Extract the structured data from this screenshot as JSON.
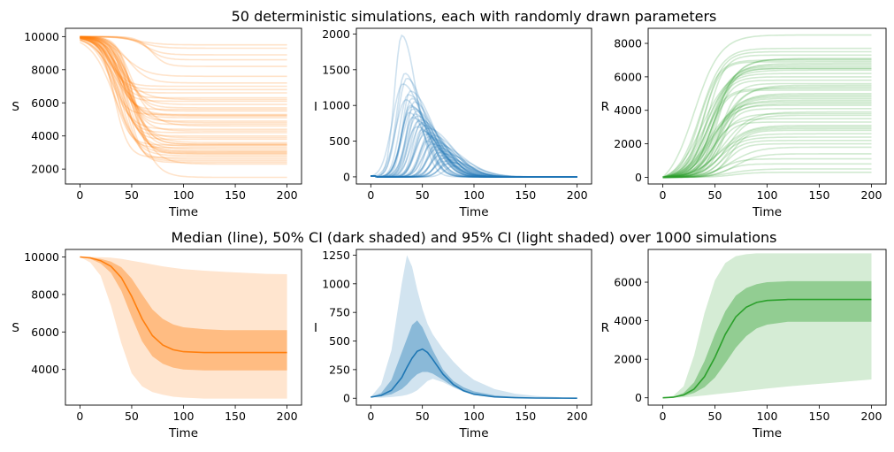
{
  "titles": {
    "top": "50 deterministic simulations, each with randomly drawn parameters",
    "bottom": "Median (line), 50% CI (dark shaded) and 95% CI (light shaded) over 1000 simulations"
  },
  "colors": {
    "S": "#ff7f0e",
    "I": "#1f77b4",
    "R": "#2ca02c"
  },
  "chart_data": [
    {
      "type": "line",
      "panel": "top-S",
      "variable": "S",
      "xlabel": "Time",
      "ylabel": "S",
      "xlim": [
        -14,
        214
      ],
      "ylim": [
        1100,
        10500
      ],
      "xticks": [
        0,
        50,
        100,
        150,
        200
      ],
      "yticks": [
        2000,
        4000,
        6000,
        8000,
        10000
      ],
      "color": "#ff7f0e",
      "trajectories_note_value": 50,
      "final_values": [
        9500,
        9300,
        8900,
        8600,
        8200,
        7600,
        7200,
        7000,
        6600,
        6300,
        6200,
        5900,
        5700,
        5500,
        5300,
        5250,
        5200,
        5100,
        4900,
        4700,
        4600,
        4400,
        4200,
        4000,
        3800,
        3600,
        3500,
        3500,
        3450,
        3300,
        3200,
        3100,
        3050,
        3000,
        2950,
        2900,
        2800,
        2600,
        2500,
        2400,
        2300,
        1500,
        6800,
        6100,
        5600,
        4800,
        4300,
        3900,
        3400,
        2700
      ]
    },
    {
      "type": "line",
      "panel": "top-I",
      "variable": "I",
      "xlabel": "Time",
      "ylabel": "I",
      "xlim": [
        -14,
        214
      ],
      "ylim": [
        -100,
        2080
      ],
      "xticks": [
        0,
        50,
        100,
        150,
        200
      ],
      "yticks": [
        0,
        500,
        1000,
        1500,
        2000
      ],
      "color": "#1f77b4",
      "peaks": [
        1980,
        1450,
        1380,
        1300,
        1200,
        1150,
        1100,
        1080,
        1050,
        1000,
        980,
        950,
        920,
        900,
        880,
        850,
        830,
        800,
        780,
        760,
        740,
        720,
        700,
        680,
        660,
        640,
        620,
        600,
        580,
        560,
        540,
        520,
        500,
        480,
        460,
        440,
        420,
        400,
        380,
        360,
        340,
        320,
        300,
        280,
        260,
        240,
        220,
        200,
        180,
        150
      ],
      "peak_times": [
        30,
        33,
        35,
        31,
        38,
        36,
        40,
        34,
        42,
        38,
        39,
        41,
        44,
        37,
        43,
        45,
        40,
        47,
        46,
        50,
        48,
        52,
        44,
        55,
        49,
        51,
        57,
        53,
        60,
        56,
        58,
        62,
        54,
        64,
        59,
        66,
        61,
        68,
        63,
        70,
        65,
        72,
        67,
        74,
        69,
        76,
        71,
        78,
        73,
        80
      ]
    },
    {
      "type": "line",
      "panel": "top-R",
      "variable": "R",
      "xlabel": "Time",
      "ylabel": "R",
      "xlim": [
        -14,
        214
      ],
      "ylim": [
        -400,
        8900
      ],
      "xticks": [
        0,
        50,
        100,
        150,
        200
      ],
      "yticks": [
        0,
        2000,
        4000,
        6000,
        8000
      ],
      "color": "#2ca02c",
      "final_values": [
        8500,
        7700,
        7500,
        7300,
        7100,
        7050,
        7000,
        6900,
        6800,
        6700,
        6500,
        6500,
        6400,
        6200,
        6000,
        5800,
        5500,
        5400,
        5300,
        5200,
        5000,
        4900,
        4800,
        4700,
        4600,
        4500,
        4300,
        4100,
        3900,
        3700,
        3500,
        3300,
        3100,
        3000,
        2900,
        2800,
        2600,
        2400,
        2200,
        2000,
        1800,
        1400,
        1100,
        800,
        500,
        300,
        6600,
        5600,
        4400,
        3800
      ]
    },
    {
      "type": "area",
      "panel": "bottom-S",
      "variable": "S",
      "xlabel": "Time",
      "ylabel": "S",
      "xlim": [
        -14,
        214
      ],
      "ylim": [
        2100,
        10400
      ],
      "xticks": [
        0,
        50,
        100,
        150,
        200
      ],
      "yticks": [
        4000,
        6000,
        8000,
        10000
      ],
      "x": [
        0,
        10,
        20,
        30,
        40,
        50,
        60,
        70,
        80,
        90,
        100,
        120,
        140,
        160,
        180,
        200
      ],
      "median": [
        10000,
        9950,
        9800,
        9500,
        8900,
        7900,
        6700,
        5800,
        5300,
        5050,
        4950,
        4900,
        4900,
        4900,
        4900,
        4900
      ],
      "ci50_low": [
        10000,
        9900,
        9650,
        9150,
        8200,
        6800,
        5500,
        4700,
        4300,
        4100,
        4000,
        3950,
        3950,
        3950,
        3950,
        3950
      ],
      "ci50_high": [
        10000,
        9980,
        9900,
        9750,
        9450,
        8850,
        8000,
        7200,
        6700,
        6400,
        6250,
        6150,
        6100,
        6100,
        6100,
        6100
      ],
      "ci95_low": [
        10000,
        9700,
        9000,
        7400,
        5400,
        3800,
        3100,
        2800,
        2650,
        2550,
        2500,
        2450,
        2450,
        2450,
        2450,
        2450
      ],
      "ci95_high": [
        10000,
        10000,
        9990,
        9960,
        9900,
        9800,
        9700,
        9600,
        9500,
        9420,
        9350,
        9270,
        9200,
        9150,
        9100,
        9080
      ]
    },
    {
      "type": "area",
      "panel": "bottom-I",
      "variable": "I",
      "xlabel": "Time",
      "ylabel": "I",
      "xlim": [
        -14,
        214
      ],
      "ylim": [
        -60,
        1300
      ],
      "xticks": [
        0,
        50,
        100,
        150,
        200
      ],
      "yticks": [
        0,
        250,
        500,
        750,
        1000,
        1250
      ],
      "x": [
        0,
        10,
        20,
        30,
        35,
        40,
        45,
        50,
        55,
        60,
        70,
        80,
        90,
        100,
        120,
        140,
        160,
        180,
        200
      ],
      "median": [
        10,
        25,
        70,
        180,
        270,
        350,
        410,
        430,
        400,
        340,
        210,
        120,
        65,
        35,
        12,
        5,
        2,
        1,
        0
      ],
      "ci50_low": [
        10,
        15,
        35,
        80,
        120,
        170,
        210,
        230,
        230,
        215,
        160,
        100,
        60,
        35,
        12,
        5,
        2,
        1,
        0
      ],
      "ci50_high": [
        10,
        45,
        160,
        400,
        520,
        640,
        680,
        620,
        520,
        420,
        250,
        150,
        95,
        60,
        25,
        10,
        4,
        2,
        1
      ],
      "ci95_low": [
        10,
        5,
        10,
        20,
        30,
        45,
        70,
        110,
        150,
        170,
        140,
        95,
        55,
        30,
        10,
        4,
        1,
        0,
        0
      ],
      "ci95_high": [
        10,
        120,
        420,
        1000,
        1250,
        1150,
        950,
        780,
        650,
        560,
        430,
        320,
        230,
        160,
        80,
        40,
        20,
        10,
        5
      ]
    },
    {
      "type": "area",
      "panel": "bottom-R",
      "variable": "R",
      "xlabel": "Time",
      "ylabel": "R",
      "xlim": [
        -14,
        214
      ],
      "ylim": [
        -380,
        7700
      ],
      "xticks": [
        0,
        50,
        100,
        150,
        200
      ],
      "yticks": [
        0,
        2000,
        4000,
        6000
      ],
      "x": [
        0,
        10,
        20,
        30,
        40,
        50,
        60,
        70,
        80,
        90,
        100,
        120,
        140,
        160,
        180,
        200
      ],
      "median": [
        0,
        30,
        150,
        450,
        1100,
        2100,
        3300,
        4200,
        4700,
        4950,
        5050,
        5100,
        5100,
        5100,
        5100,
        5100
      ],
      "ci50_low": [
        0,
        20,
        90,
        250,
        550,
        1050,
        1800,
        2600,
        3200,
        3600,
        3800,
        3950,
        3950,
        3950,
        3950,
        3950
      ],
      "ci50_high": [
        0,
        40,
        250,
        800,
        1900,
        3300,
        4500,
        5300,
        5700,
        5900,
        6000,
        6050,
        6050,
        6050,
        6050,
        6050
      ],
      "ci95_low": [
        0,
        10,
        30,
        70,
        120,
        180,
        240,
        300,
        360,
        420,
        480,
        590,
        680,
        770,
        860,
        950
      ],
      "ci95_high": [
        0,
        100,
        600,
        2200,
        4400,
        6100,
        7000,
        7350,
        7450,
        7500,
        7500,
        7500,
        7500,
        7500,
        7500,
        7500
      ]
    }
  ]
}
